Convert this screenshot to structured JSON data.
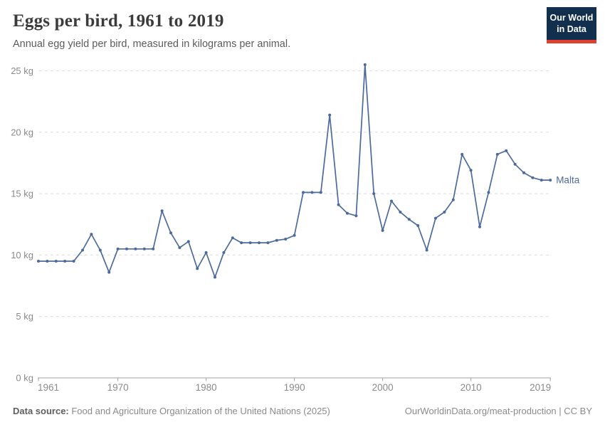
{
  "header": {
    "title": "Eggs per bird, 1961 to 2019",
    "subtitle": "Annual egg yield per bird, measured in kilograms per animal.",
    "logo": {
      "line1": "Our World",
      "line2": "in Data"
    }
  },
  "footer": {
    "source_label": "Data source:",
    "source_text": " Food and Agriculture Organization of the United Nations (2025)",
    "credit": "OurWorldinData.org/meat-production | CC BY"
  },
  "colors": {
    "series_blue": "#4c6a9c",
    "gridline": "#dedede",
    "axis": "#a3a3a3",
    "tick_label": "#8a8a8a",
    "logo_navy": "#12304e",
    "logo_red": "#e04030"
  },
  "chart_data": {
    "type": "line",
    "title": "Eggs per bird, 1961 to 2019",
    "subtitle": "Annual egg yield per bird, measured in kilograms per animal.",
    "xlabel": "",
    "ylabel": "kg",
    "unit": "kg",
    "grid": "horizontal-dashed",
    "legend_position": "end-of-line-label",
    "xlim": [
      1961,
      2019
    ],
    "ylim": [
      0,
      25
    ],
    "x_ticks": [
      1961,
      1970,
      1980,
      1990,
      2000,
      2010,
      2019
    ],
    "x_tick_labels": [
      "1961",
      "1970",
      "1980",
      "1990",
      "2000",
      "2010",
      "2019"
    ],
    "y_ticks": [
      0,
      5,
      10,
      15,
      20,
      25
    ],
    "y_tick_labels": [
      "0 kg",
      "5 kg",
      "10 kg",
      "15 kg",
      "20 kg",
      "25 kg"
    ],
    "series": [
      {
        "name": "Malta",
        "color": "#4c6a9c",
        "x": [
          1961,
          1962,
          1963,
          1964,
          1965,
          1966,
          1967,
          1968,
          1969,
          1970,
          1971,
          1972,
          1973,
          1974,
          1975,
          1976,
          1977,
          1978,
          1979,
          1980,
          1981,
          1982,
          1983,
          1984,
          1985,
          1986,
          1987,
          1988,
          1989,
          1990,
          1991,
          1992,
          1993,
          1994,
          1995,
          1996,
          1997,
          1998,
          1999,
          2000,
          2001,
          2002,
          2003,
          2004,
          2005,
          2006,
          2007,
          2008,
          2009,
          2010,
          2011,
          2012,
          2013,
          2014,
          2015,
          2016,
          2017,
          2018,
          2019
        ],
        "values": [
          9.5,
          9.5,
          9.5,
          9.5,
          9.5,
          10.4,
          11.7,
          10.4,
          8.6,
          10.5,
          10.5,
          10.5,
          10.5,
          10.5,
          13.6,
          11.8,
          10.6,
          11.1,
          8.9,
          10.2,
          8.2,
          10.2,
          11.4,
          11.0,
          11.0,
          11.0,
          11.0,
          11.2,
          11.3,
          11.6,
          15.1,
          15.1,
          15.1,
          21.4,
          14.1,
          13.4,
          13.2,
          25.5,
          15.0,
          12.0,
          14.4,
          13.5,
          12.9,
          12.4,
          10.4,
          13.0,
          13.5,
          14.5,
          18.2,
          16.9,
          12.3,
          15.1,
          18.2,
          18.5,
          17.4,
          16.7,
          16.3,
          16.1,
          16.1
        ]
      }
    ]
  }
}
